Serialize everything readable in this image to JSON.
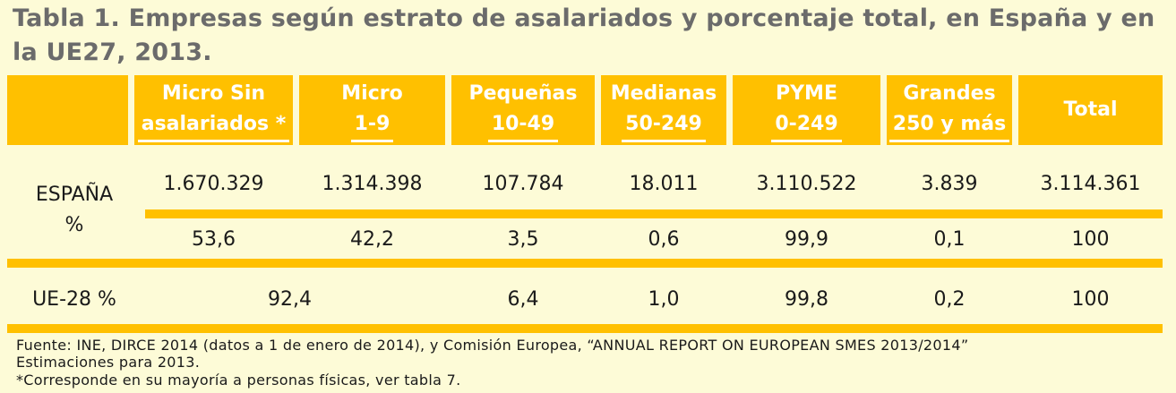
{
  "title": "Tabla 1. Empresas según estrato de asalariados y porcentaje total, en España y en la UE27, 2013.",
  "header": {
    "micro_sin": [
      "Micro Sin",
      "asalariados *"
    ],
    "micro": [
      "Micro",
      "1-9"
    ],
    "pequenas": [
      "Pequeñas",
      "10-49"
    ],
    "medianas": [
      "Medianas",
      "50-249"
    ],
    "pyme": [
      "PYME",
      "0-249"
    ],
    "grandes": [
      "Grandes",
      "250 y más"
    ],
    "total": "Total"
  },
  "espana": {
    "label_line1": "ESPAÑA",
    "label_line2": "%",
    "values": [
      "1.670.329",
      "1.314.398",
      "107.784",
      "18.011",
      "3.110.522",
      "3.839",
      "3.114.361"
    ],
    "percents": [
      "53,6",
      "42,2",
      "3,5",
      "0,6",
      "99,9",
      "0,1",
      "100"
    ]
  },
  "ue": {
    "label": "UE-28 %",
    "micro_combined": "92,4",
    "values": [
      "6,4",
      "1,0",
      "99,8",
      "0,2",
      "100"
    ]
  },
  "footnotes": {
    "source": "Fuente: INE, DIRCE 2014 (datos a 1 de enero de 2014), y  Comisión Europea, “ANNUAL REPORT ON EUROPEAN SMES 2013/2014”",
    "source_cont": "Estimaciones para 2013.",
    "note": "*Corresponde en su mayoría a personas físicas, ver tabla 7."
  }
}
